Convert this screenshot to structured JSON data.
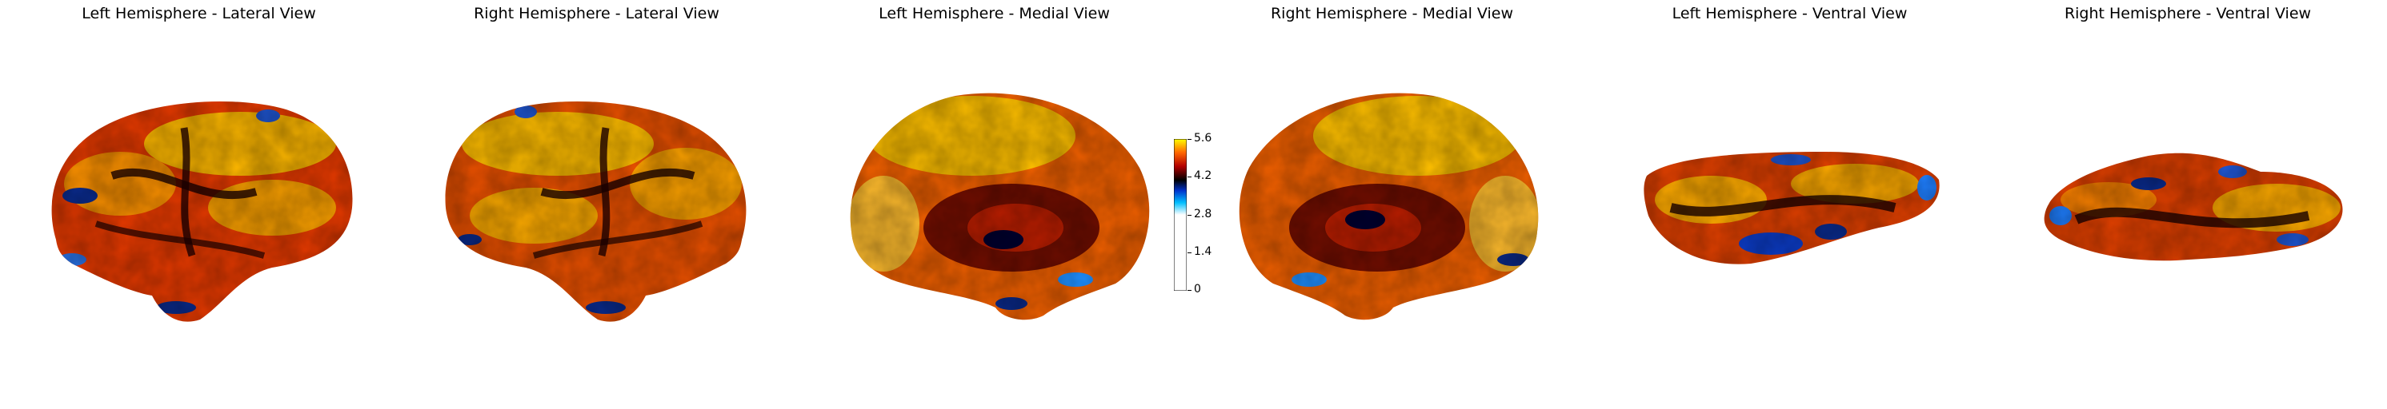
{
  "panels": [
    {
      "title": "Left Hemisphere - Lateral View",
      "view": "lateral",
      "hemisphere": "left"
    },
    {
      "title": "Right Hemisphere - Lateral View",
      "view": "lateral",
      "hemisphere": "right"
    },
    {
      "title": "Left Hemisphere - Medial View",
      "view": "medial",
      "hemisphere": "left"
    },
    {
      "title": "Right Hemisphere - Medial View",
      "view": "medial",
      "hemisphere": "right"
    },
    {
      "title": "Left Hemisphere - Ventral View",
      "view": "ventral",
      "hemisphere": "left"
    },
    {
      "title": "Right Hemisphere - Ventral View",
      "view": "ventral",
      "hemisphere": "right"
    }
  ],
  "colorbar": {
    "min": 0,
    "max": 5.6,
    "ticks": [
      "0",
      "1.4",
      "2.8",
      "4.2",
      "5.6"
    ],
    "colormap": [
      "#ffffff",
      "#00bfff",
      "#0033cc",
      "#000000",
      "#b30000",
      "#ff6600",
      "#ffff00"
    ]
  }
}
